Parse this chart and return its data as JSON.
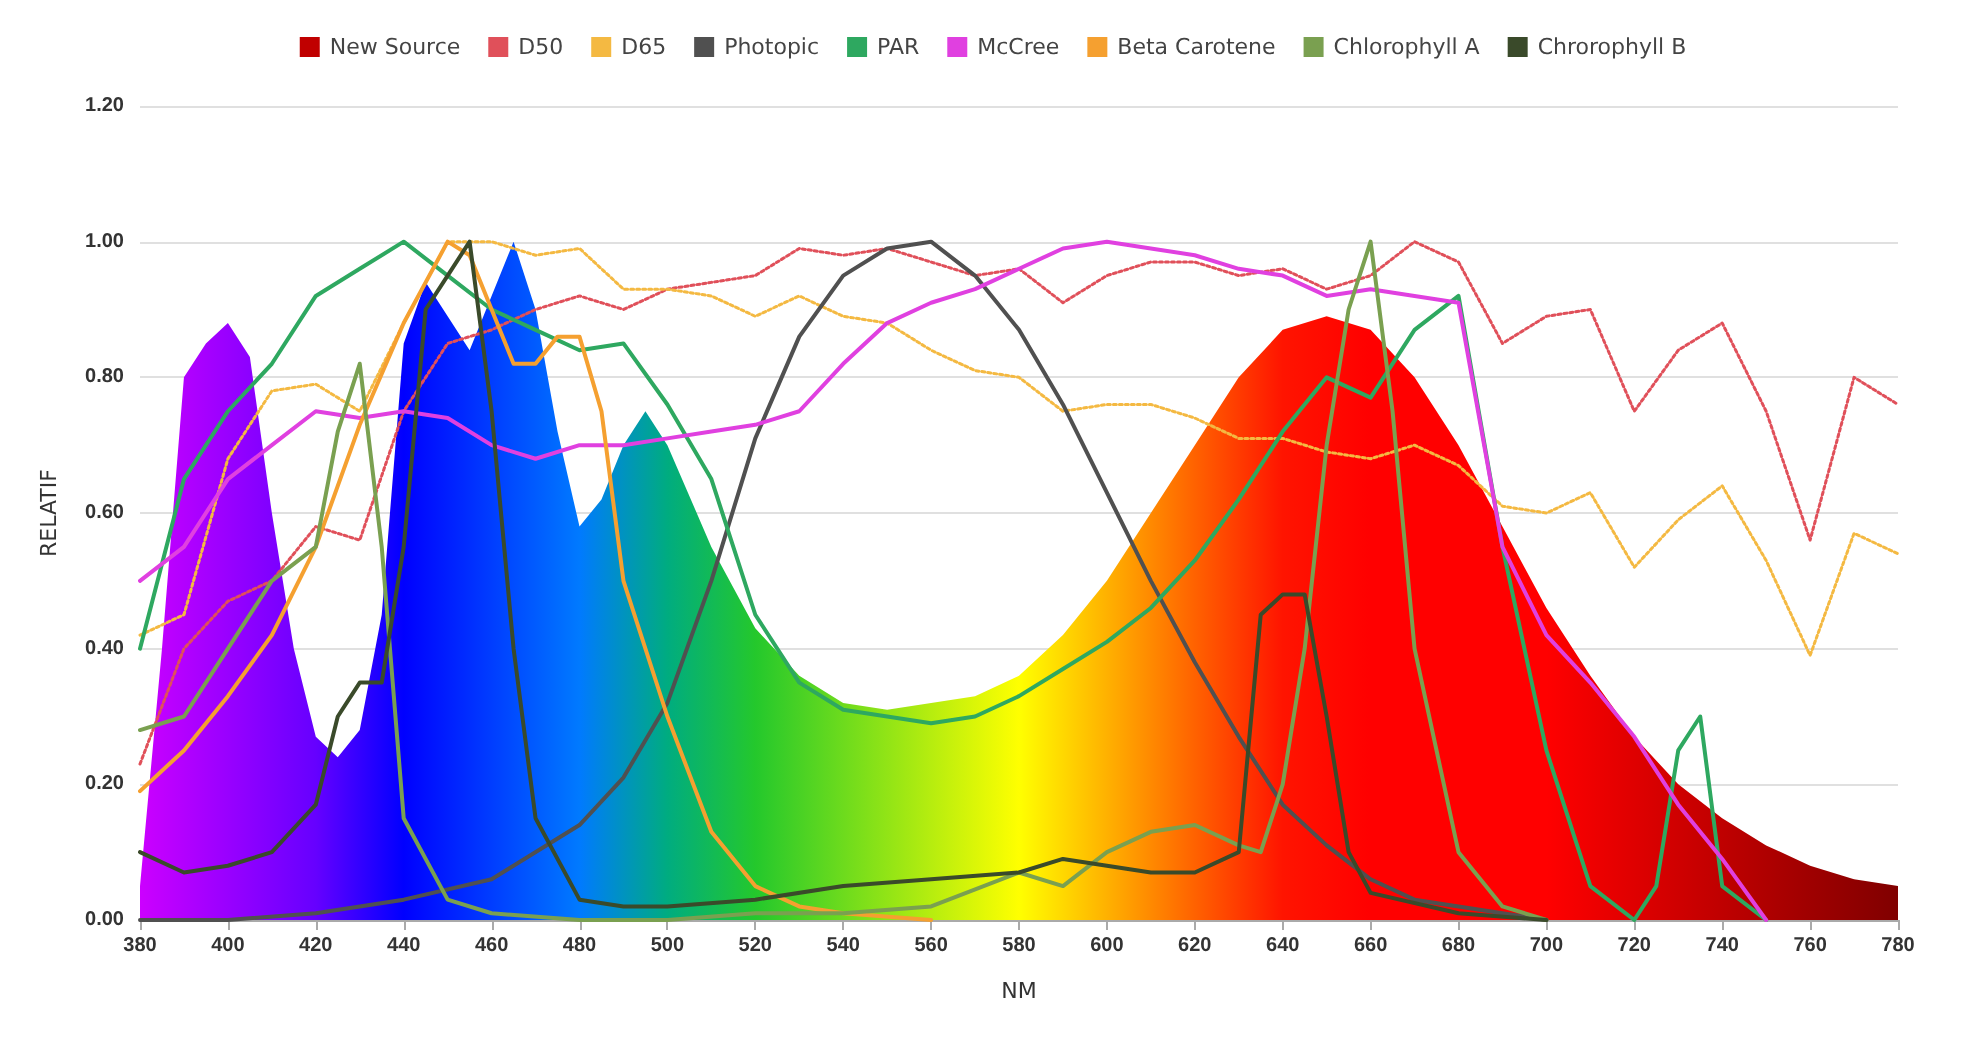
{
  "chart_data": {
    "type": "line",
    "xlabel": "NM",
    "ylabel": "RELATIF",
    "xlim": [
      380,
      780
    ],
    "xticks": [
      380,
      400,
      420,
      440,
      460,
      480,
      500,
      520,
      540,
      560,
      580,
      600,
      620,
      640,
      660,
      680,
      700,
      720,
      740,
      760,
      780
    ],
    "ylim": [
      0,
      1.2
    ],
    "yticks": [
      {
        "value": 0,
        "label": "0.00"
      },
      {
        "value": 0.2,
        "label": "0.20"
      },
      {
        "value": 0.4,
        "label": "0.40"
      },
      {
        "value": 0.6,
        "label": "0.60"
      },
      {
        "value": 0.8,
        "label": "0.80"
      },
      {
        "value": 1,
        "label": "1.00"
      },
      {
        "value": 1.2,
        "label": "1.20"
      }
    ],
    "grid": "y",
    "legend": "top",
    "marker": "none",
    "series": [
      {
        "name": "New Source",
        "type": "area",
        "color": "#c00000",
        "x": [
          380,
          385,
          390,
          395,
          400,
          405,
          410,
          415,
          420,
          425,
          430,
          435,
          440,
          445,
          450,
          455,
          460,
          465,
          470,
          475,
          480,
          485,
          490,
          495,
          500,
          510,
          520,
          530,
          540,
          550,
          560,
          570,
          580,
          590,
          600,
          610,
          620,
          630,
          640,
          650,
          660,
          670,
          680,
          690,
          700,
          710,
          720,
          730,
          740,
          750,
          760,
          770,
          780
        ],
        "values": [
          0.05,
          0.4,
          0.8,
          0.85,
          0.88,
          0.83,
          0.6,
          0.4,
          0.27,
          0.24,
          0.28,
          0.45,
          0.85,
          0.94,
          0.89,
          0.84,
          0.92,
          1.0,
          0.9,
          0.72,
          0.58,
          0.62,
          0.7,
          0.75,
          0.7,
          0.55,
          0.43,
          0.36,
          0.32,
          0.31,
          0.32,
          0.33,
          0.36,
          0.42,
          0.5,
          0.6,
          0.7,
          0.8,
          0.87,
          0.89,
          0.87,
          0.8,
          0.7,
          0.58,
          0.46,
          0.36,
          0.27,
          0.2,
          0.15,
          0.11,
          0.08,
          0.06,
          0.05
        ]
      },
      {
        "name": "D50",
        "color": "#e0505a",
        "line_style": "dotted",
        "x": [
          380,
          390,
          400,
          410,
          420,
          430,
          440,
          450,
          460,
          470,
          480,
          490,
          500,
          510,
          520,
          530,
          540,
          550,
          560,
          570,
          580,
          590,
          600,
          610,
          620,
          630,
          640,
          650,
          660,
          670,
          680,
          690,
          700,
          710,
          720,
          730,
          740,
          750,
          760,
          770,
          780
        ],
        "values": [
          0.23,
          0.4,
          0.47,
          0.5,
          0.58,
          0.56,
          0.75,
          0.85,
          0.87,
          0.9,
          0.92,
          0.9,
          0.93,
          0.94,
          0.95,
          0.99,
          0.98,
          0.99,
          0.97,
          0.95,
          0.96,
          0.91,
          0.95,
          0.97,
          0.97,
          0.95,
          0.96,
          0.93,
          0.95,
          1.0,
          0.97,
          0.85,
          0.89,
          0.9,
          0.75,
          0.84,
          0.88,
          0.75,
          0.56,
          0.8,
          0.76
        ]
      },
      {
        "name": "D65",
        "color": "#f4b942",
        "line_style": "dotted",
        "x": [
          380,
          390,
          400,
          410,
          420,
          430,
          440,
          450,
          460,
          470,
          480,
          490,
          500,
          510,
          520,
          530,
          540,
          550,
          560,
          570,
          580,
          590,
          600,
          610,
          620,
          630,
          640,
          650,
          660,
          670,
          680,
          690,
          700,
          710,
          720,
          730,
          740,
          750,
          760,
          770,
          780
        ],
        "values": [
          0.42,
          0.45,
          0.68,
          0.78,
          0.79,
          0.75,
          0.88,
          1.0,
          1.0,
          0.98,
          0.99,
          0.93,
          0.93,
          0.92,
          0.89,
          0.92,
          0.89,
          0.88,
          0.84,
          0.81,
          0.8,
          0.75,
          0.76,
          0.76,
          0.74,
          0.71,
          0.71,
          0.69,
          0.68,
          0.7,
          0.67,
          0.61,
          0.6,
          0.63,
          0.52,
          0.59,
          0.64,
          0.53,
          0.39,
          0.57,
          0.54
        ]
      },
      {
        "name": "Photopic",
        "color": "#505050",
        "x": [
          380,
          400,
          420,
          440,
          460,
          480,
          490,
          500,
          510,
          520,
          530,
          540,
          550,
          560,
          570,
          580,
          590,
          600,
          610,
          620,
          630,
          640,
          650,
          660,
          670,
          680,
          690,
          700
        ],
        "values": [
          0,
          0,
          0.01,
          0.03,
          0.06,
          0.14,
          0.21,
          0.32,
          0.5,
          0.71,
          0.86,
          0.95,
          0.99,
          1.0,
          0.95,
          0.87,
          0.76,
          0.63,
          0.5,
          0.38,
          0.27,
          0.17,
          0.11,
          0.06,
          0.03,
          0.02,
          0.01,
          0
        ]
      },
      {
        "name": "PAR",
        "color": "#2ea860",
        "x": [
          380,
          390,
          400,
          410,
          420,
          430,
          440,
          450,
          460,
          470,
          480,
          490,
          500,
          510,
          520,
          530,
          540,
          550,
          560,
          570,
          580,
          590,
          600,
          610,
          620,
          630,
          640,
          650,
          660,
          670,
          680,
          690,
          700,
          710,
          720,
          725,
          730,
          735,
          740,
          750
        ],
        "values": [
          0.4,
          0.65,
          0.75,
          0.82,
          0.92,
          0.96,
          1.0,
          0.95,
          0.9,
          0.87,
          0.84,
          0.85,
          0.76,
          0.65,
          0.45,
          0.35,
          0.31,
          0.3,
          0.29,
          0.3,
          0.33,
          0.37,
          0.41,
          0.46,
          0.53,
          0.62,
          0.72,
          0.8,
          0.77,
          0.87,
          0.92,
          0.55,
          0.25,
          0.05,
          0,
          0.05,
          0.25,
          0.3,
          0.05,
          0
        ]
      },
      {
        "name": "McCree",
        "color": "#e040e0",
        "x": [
          380,
          390,
          400,
          410,
          420,
          430,
          440,
          450,
          460,
          470,
          480,
          490,
          500,
          510,
          520,
          530,
          540,
          550,
          560,
          570,
          580,
          590,
          600,
          610,
          620,
          630,
          640,
          650,
          660,
          670,
          680,
          690,
          700,
          710,
          720,
          730,
          740,
          750
        ],
        "values": [
          0.5,
          0.55,
          0.65,
          0.7,
          0.75,
          0.74,
          0.75,
          0.74,
          0.7,
          0.68,
          0.7,
          0.7,
          0.71,
          0.72,
          0.73,
          0.75,
          0.82,
          0.88,
          0.91,
          0.93,
          0.96,
          0.99,
          1.0,
          0.99,
          0.98,
          0.96,
          0.95,
          0.92,
          0.93,
          0.92,
          0.91,
          0.55,
          0.42,
          0.35,
          0.27,
          0.17,
          0.09,
          0
        ]
      },
      {
        "name": "Beta Carotene",
        "color": "#f5a030",
        "x": [
          380,
          390,
          400,
          410,
          420,
          430,
          440,
          450,
          455,
          460,
          465,
          470,
          475,
          480,
          485,
          490,
          500,
          510,
          520,
          530,
          540,
          560
        ],
        "values": [
          0.19,
          0.25,
          0.33,
          0.42,
          0.55,
          0.73,
          0.88,
          1.0,
          0.98,
          0.9,
          0.82,
          0.82,
          0.86,
          0.86,
          0.75,
          0.5,
          0.3,
          0.13,
          0.05,
          0.02,
          0.01,
          0
        ]
      },
      {
        "name": "Chlorophyll A",
        "color": "#7aa050",
        "x": [
          380,
          390,
          400,
          410,
          420,
          425,
          430,
          435,
          440,
          450,
          460,
          480,
          500,
          520,
          540,
          560,
          580,
          590,
          600,
          610,
          620,
          630,
          635,
          640,
          645,
          650,
          655,
          660,
          665,
          670,
          680,
          690,
          700
        ],
        "values": [
          0.28,
          0.3,
          0.4,
          0.5,
          0.55,
          0.72,
          0.82,
          0.55,
          0.15,
          0.03,
          0.01,
          0,
          0,
          0.01,
          0.01,
          0.02,
          0.07,
          0.05,
          0.1,
          0.13,
          0.14,
          0.11,
          0.1,
          0.2,
          0.4,
          0.7,
          0.9,
          1.0,
          0.75,
          0.4,
          0.1,
          0.02,
          0
        ]
      },
      {
        "name": "Chrorophyll B",
        "color": "#3a4a2a",
        "x": [
          380,
          390,
          400,
          410,
          420,
          425,
          430,
          435,
          440,
          445,
          450,
          455,
          460,
          465,
          470,
          480,
          490,
          500,
          520,
          540,
          560,
          580,
          590,
          600,
          610,
          620,
          630,
          635,
          640,
          645,
          650,
          655,
          660,
          680,
          700
        ],
        "values": [
          0.1,
          0.07,
          0.08,
          0.1,
          0.17,
          0.3,
          0.35,
          0.35,
          0.55,
          0.9,
          0.95,
          1.0,
          0.75,
          0.4,
          0.15,
          0.03,
          0.02,
          0.02,
          0.03,
          0.05,
          0.06,
          0.07,
          0.09,
          0.08,
          0.07,
          0.07,
          0.1,
          0.45,
          0.48,
          0.48,
          0.3,
          0.1,
          0.04,
          0.01,
          0
        ]
      }
    ]
  }
}
